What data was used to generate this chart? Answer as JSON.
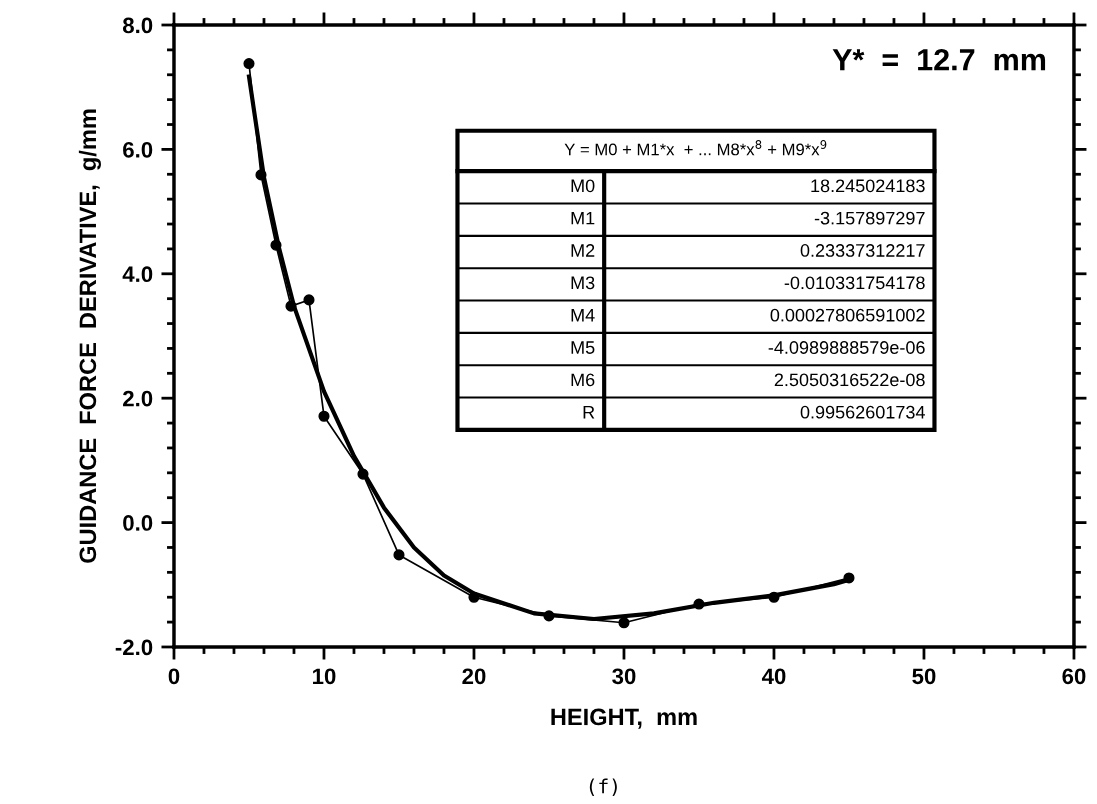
{
  "chart_data": {
    "type": "line",
    "xlabel": "HEIGHT,  mm",
    "ylabel": "GUIDANCE  FORCE  DERIVATIVE,  g/mm",
    "xlim": [
      0,
      60
    ],
    "ylim": [
      -2,
      8
    ],
    "xticks": [
      0,
      10,
      20,
      30,
      40,
      50,
      60
    ],
    "yticks": [
      {
        "value": -2,
        "label": "-2.0"
      },
      {
        "value": 0,
        "label": "0.0"
      },
      {
        "value": 2,
        "label": "2.0"
      },
      {
        "value": 4,
        "label": "4.0"
      },
      {
        "value": 6,
        "label": "6.0"
      },
      {
        "value": 8,
        "label": "8.0"
      }
    ],
    "grid": false,
    "legend": false,
    "line_style": "solid",
    "series": [
      {
        "color": "#000000",
        "marker": "circle",
        "x": [
          5,
          5.8,
          6.8,
          7.8,
          9,
          10,
          12.6,
          15,
          20,
          25,
          30,
          35,
          40,
          45
        ],
        "values": [
          7.38,
          5.59,
          4.46,
          3.48,
          3.58,
          1.71,
          0.78,
          -0.52,
          -1.2,
          -1.5,
          -1.61,
          -1.31,
          -1.2,
          -0.89
        ]
      },
      {
        "color": "#000000",
        "marker": "none",
        "x": [
          5,
          6,
          7,
          8,
          10,
          12,
          14,
          16,
          18,
          20,
          24,
          28,
          32,
          36,
          40,
          44,
          45
        ],
        "values": [
          7.17,
          5.55,
          4.42,
          3.48,
          2.11,
          1.07,
          0.24,
          -0.4,
          -0.85,
          -1.14,
          -1.46,
          -1.55,
          -1.46,
          -1.29,
          -1.17,
          -0.99,
          -0.92
        ]
      }
    ],
    "annotations": [
      "Y*  =  12.7  mm",
      "Y = M0 + M1*x  + ... M8*x$^{8}$ + M9*x$^{9}$",
      "M0",
      "18.245024183",
      "M1",
      "-3.157897297",
      "M2",
      "0.23337312217",
      "M3",
      "-0.010331754178",
      "M4",
      "0.00027806591002",
      "M5",
      "-4.0989888579e-06",
      "M6",
      "2.5050316522e-08",
      "R",
      "0.99562601734",
      "(f)"
    ]
  }
}
